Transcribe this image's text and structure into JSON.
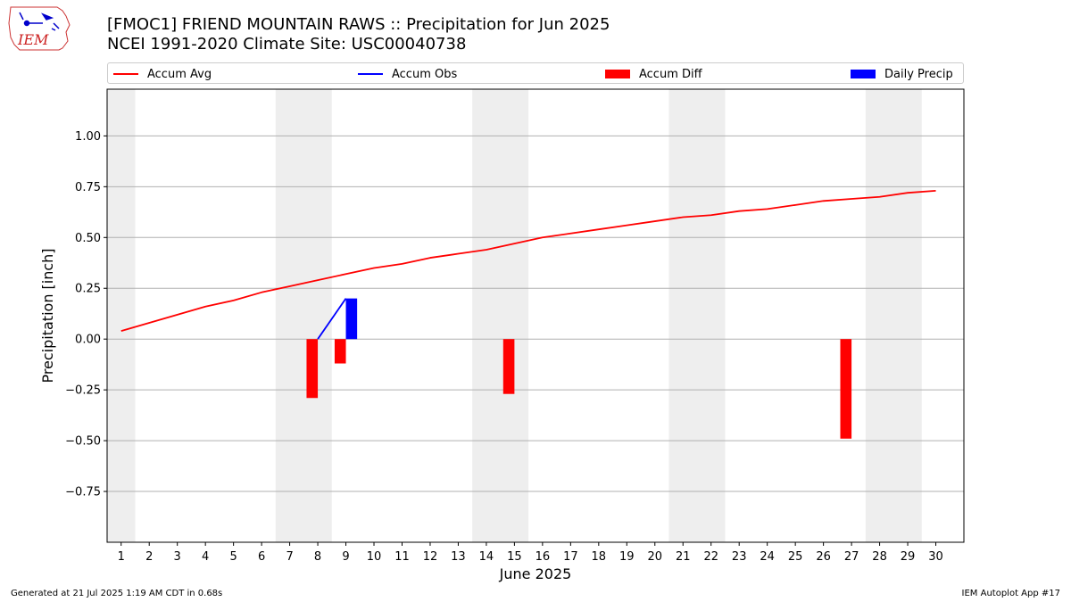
{
  "header": {
    "logo_text": "IEM",
    "title_line1": "[FMOC1] FRIEND MOUNTAIN RAWS :: Precipitation for Jun 2025",
    "title_line2": "NCEI 1991-2020 Climate Site: USC00040738"
  },
  "legend": {
    "placement": "top",
    "items": [
      {
        "label": "Accum Avg",
        "kind": "line",
        "color": "#ff0000"
      },
      {
        "label": "Accum Obs",
        "kind": "line",
        "color": "#0000ff"
      },
      {
        "label": "Accum Diff",
        "kind": "patch",
        "color": "#ff0000"
      },
      {
        "label": "Daily Precip",
        "kind": "patch",
        "color": "#0000ff"
      }
    ]
  },
  "footer": {
    "left": "Generated at 21 Jul 2025 1:19 AM CDT in 0.68s",
    "right": "IEM Autoplot App #17"
  },
  "chart_data": {
    "type": "line",
    "title": "[FMOC1] FRIEND MOUNTAIN RAWS :: Precipitation for Jun 2025",
    "subtitle": "NCEI 1991-2020 Climate Site: USC00040738",
    "xlabel": "June 2025",
    "ylabel": "Precipitation [inch]",
    "xlim": [
      0.5,
      31
    ],
    "ylim": [
      -1.0,
      1.23
    ],
    "grid": true,
    "x_ticks": [
      1,
      2,
      3,
      4,
      5,
      6,
      7,
      8,
      9,
      10,
      11,
      12,
      13,
      14,
      15,
      16,
      17,
      18,
      19,
      20,
      21,
      22,
      23,
      24,
      25,
      26,
      27,
      28,
      29,
      30
    ],
    "y_ticks": [
      {
        "value": 1.0,
        "label": "1.00"
      },
      {
        "value": 0.75,
        "label": "0.75"
      },
      {
        "value": 0.5,
        "label": "0.50"
      },
      {
        "value": 0.25,
        "label": "0.25"
      },
      {
        "value": 0.0,
        "label": "0.00"
      },
      {
        "value": -0.25,
        "label": "−0.25"
      },
      {
        "value": -0.5,
        "label": "−0.50"
      },
      {
        "value": -0.75,
        "label": "−0.75"
      }
    ],
    "weekend_shading": [
      [
        0.5,
        1.5
      ],
      [
        6.5,
        8.5
      ],
      [
        13.5,
        15.5
      ],
      [
        20.5,
        22.5
      ],
      [
        27.5,
        29.5
      ]
    ],
    "series": [
      {
        "name": "Accum Avg",
        "kind": "line",
        "color": "#ff0000",
        "x": [
          1,
          2,
          3,
          4,
          5,
          6,
          7,
          8,
          9,
          10,
          11,
          12,
          13,
          14,
          15,
          16,
          17,
          18,
          19,
          20,
          21,
          22,
          23,
          24,
          25,
          26,
          27,
          28,
          29,
          30
        ],
        "values": [
          0.04,
          0.08,
          0.12,
          0.16,
          0.19,
          0.23,
          0.26,
          0.29,
          0.32,
          0.35,
          0.37,
          0.4,
          0.42,
          0.44,
          0.47,
          0.5,
          0.52,
          0.54,
          0.56,
          0.58,
          0.6,
          0.61,
          0.63,
          0.64,
          0.66,
          0.68,
          0.69,
          0.7,
          0.72,
          0.73
        ]
      },
      {
        "name": "Accum Obs",
        "kind": "line",
        "color": "#0000ff",
        "x": [
          8,
          9
        ],
        "values": [
          0.0,
          0.2
        ]
      },
      {
        "name": "Accum Diff",
        "kind": "bar",
        "color": "#ff0000",
        "x": [
          7.8,
          8.8,
          14.8,
          26.8
        ],
        "values": [
          -0.29,
          -0.12,
          -0.27,
          -0.49
        ]
      },
      {
        "name": "Daily Precip",
        "kind": "bar",
        "color": "#0000ff",
        "x": [
          9.2
        ],
        "values": [
          0.2
        ]
      }
    ]
  }
}
